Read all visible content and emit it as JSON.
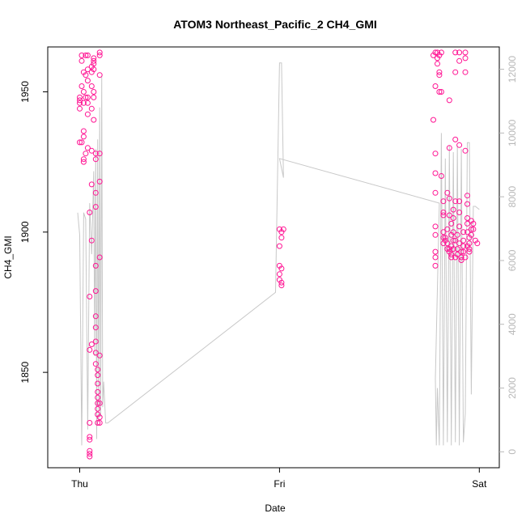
{
  "chart_data": {
    "type": "scatter",
    "title": "ATOM3 Northeast_Pacific_2 CH4_GMI",
    "xlabel": "Date",
    "ylabel": "CH4_GMI",
    "x_ticks": [
      "Thu",
      "Fri",
      "Sat"
    ],
    "y_ticks_left": [
      "1850",
      "1900",
      "1950"
    ],
    "y_ticks_right": [
      "0",
      "2000",
      "4000",
      "6000",
      "8000",
      "10000",
      "12000"
    ],
    "ylim_left": [
      1816,
      1966
    ],
    "ylim_right": [
      -500,
      12700
    ],
    "xlim_days": [
      -0.16,
      2.1
    ],
    "marker_color": "#ff1493",
    "line_color": "#c8c8c8",
    "series": [
      {
        "kind": "points",
        "axis": "left",
        "points": [
          [
            0.0,
            1932
          ],
          [
            0.0,
            1946
          ],
          [
            0.0,
            1948
          ],
          [
            0.0,
            1947
          ],
          [
            0.0,
            1944
          ],
          [
            0.01,
            1932
          ],
          [
            0.01,
            1952
          ],
          [
            0.01,
            1963
          ],
          [
            0.01,
            1961
          ],
          [
            0.02,
            1957
          ],
          [
            0.02,
            1950
          ],
          [
            0.02,
            1946
          ],
          [
            0.02,
            1936
          ],
          [
            0.02,
            1934
          ],
          [
            0.02,
            1926
          ],
          [
            0.02,
            1925
          ],
          [
            0.03,
            1928
          ],
          [
            0.03,
            1963
          ],
          [
            0.03,
            1956
          ],
          [
            0.03,
            1948
          ],
          [
            0.04,
            1963
          ],
          [
            0.04,
            1958
          ],
          [
            0.04,
            1954
          ],
          [
            0.04,
            1948
          ],
          [
            0.04,
            1946
          ],
          [
            0.04,
            1942
          ],
          [
            0.04,
            1930
          ],
          [
            0.05,
            1907
          ],
          [
            0.05,
            1877
          ],
          [
            0.05,
            1858
          ],
          [
            0.05,
            1832
          ],
          [
            0.05,
            1827
          ],
          [
            0.05,
            1822
          ],
          [
            0.05,
            1820
          ],
          [
            0.05,
            1821
          ],
          [
            0.05,
            1826
          ],
          [
            0.06,
            1860
          ],
          [
            0.06,
            1897
          ],
          [
            0.06,
            1917
          ],
          [
            0.06,
            1929
          ],
          [
            0.06,
            1944
          ],
          [
            0.06,
            1952
          ],
          [
            0.06,
            1957
          ],
          [
            0.06,
            1959
          ],
          [
            0.07,
            1961
          ],
          [
            0.07,
            1962
          ],
          [
            0.07,
            1960
          ],
          [
            0.07,
            1958
          ],
          [
            0.07,
            1950
          ],
          [
            0.07,
            1948
          ],
          [
            0.07,
            1940
          ],
          [
            0.08,
            1928
          ],
          [
            0.08,
            1926
          ],
          [
            0.08,
            1914
          ],
          [
            0.08,
            1909
          ],
          [
            0.08,
            1888
          ],
          [
            0.08,
            1879
          ],
          [
            0.08,
            1870
          ],
          [
            0.08,
            1866
          ],
          [
            0.08,
            1861
          ],
          [
            0.08,
            1857
          ],
          [
            0.08,
            1853
          ],
          [
            0.09,
            1851
          ],
          [
            0.09,
            1849
          ],
          [
            0.09,
            1846
          ],
          [
            0.09,
            1843
          ],
          [
            0.09,
            1841
          ],
          [
            0.09,
            1839
          ],
          [
            0.09,
            1837
          ],
          [
            0.09,
            1835
          ],
          [
            0.09,
            1832
          ],
          [
            0.1,
            1839
          ],
          [
            0.1,
            1834
          ],
          [
            0.1,
            1832
          ],
          [
            0.1,
            1856
          ],
          [
            0.1,
            1891
          ],
          [
            0.1,
            1918
          ],
          [
            0.1,
            1928
          ],
          [
            0.1,
            1956
          ],
          [
            0.1,
            1963
          ],
          [
            0.1,
            1964
          ],
          [
            1.0,
            1901
          ],
          [
            1.0,
            1895
          ],
          [
            1.0,
            1888
          ],
          [
            1.0,
            1885
          ],
          [
            1.0,
            1883
          ],
          [
            1.01,
            1882
          ],
          [
            1.01,
            1881
          ],
          [
            1.01,
            1887
          ],
          [
            1.01,
            1898
          ],
          [
            1.01,
            1900
          ],
          [
            1.02,
            1901
          ],
          [
            1.77,
            1963
          ],
          [
            1.78,
            1964
          ],
          [
            1.78,
            1952
          ],
          [
            1.77,
            1940
          ],
          [
            1.78,
            1928
          ],
          [
            1.78,
            1921
          ],
          [
            1.78,
            1914
          ],
          [
            1.78,
            1902
          ],
          [
            1.78,
            1899
          ],
          [
            1.78,
            1893
          ],
          [
            1.78,
            1891
          ],
          [
            1.78,
            1888
          ],
          [
            1.79,
            1964
          ],
          [
            1.79,
            1962
          ],
          [
            1.79,
            1960
          ],
          [
            1.8,
            1957
          ],
          [
            1.8,
            1956
          ],
          [
            1.8,
            1963
          ],
          [
            1.8,
            1950
          ],
          [
            1.81,
            1964
          ],
          [
            1.81,
            1950
          ],
          [
            1.81,
            1920
          ],
          [
            1.82,
            1911
          ],
          [
            1.82,
            1906
          ],
          [
            1.82,
            1907
          ],
          [
            1.82,
            1900
          ],
          [
            1.82,
            1898
          ],
          [
            1.82,
            1896
          ],
          [
            1.83,
            1898
          ],
          [
            1.83,
            1897
          ],
          [
            1.84,
            1901
          ],
          [
            1.84,
            1914
          ],
          [
            1.84,
            1894
          ],
          [
            1.84,
            1896
          ],
          [
            1.85,
            1947
          ],
          [
            1.85,
            1930
          ],
          [
            1.85,
            1912
          ],
          [
            1.85,
            1906
          ],
          [
            1.85,
            1894
          ],
          [
            1.85,
            1893
          ],
          [
            1.86,
            1903
          ],
          [
            1.86,
            1899
          ],
          [
            1.86,
            1895
          ],
          [
            1.86,
            1892
          ],
          [
            1.86,
            1891
          ],
          [
            1.87,
            1908
          ],
          [
            1.87,
            1905
          ],
          [
            1.87,
            1900
          ],
          [
            1.87,
            1897
          ],
          [
            1.87,
            1894
          ],
          [
            1.88,
            1964
          ],
          [
            1.88,
            1957
          ],
          [
            1.88,
            1933
          ],
          [
            1.88,
            1911
          ],
          [
            1.88,
            1897
          ],
          [
            1.88,
            1891
          ],
          [
            1.89,
            1899
          ],
          [
            1.89,
            1894
          ],
          [
            1.89,
            1892
          ],
          [
            1.9,
            1964
          ],
          [
            1.9,
            1961
          ],
          [
            1.9,
            1931
          ],
          [
            1.9,
            1911
          ],
          [
            1.9,
            1907
          ],
          [
            1.9,
            1902
          ],
          [
            1.9,
            1896
          ],
          [
            1.91,
            1893
          ],
          [
            1.91,
            1891
          ],
          [
            1.91,
            1890
          ],
          [
            1.92,
            1900
          ],
          [
            1.92,
            1897
          ],
          [
            1.92,
            1895
          ],
          [
            1.92,
            1893
          ],
          [
            1.93,
            1891
          ],
          [
            1.93,
            1964
          ],
          [
            1.93,
            1962
          ],
          [
            1.93,
            1957
          ],
          [
            1.93,
            1929
          ],
          [
            1.94,
            1913
          ],
          [
            1.94,
            1910
          ],
          [
            1.94,
            1905
          ],
          [
            1.94,
            1903
          ],
          [
            1.94,
            1900
          ],
          [
            1.94,
            1895
          ],
          [
            1.95,
            1898
          ],
          [
            1.95,
            1896
          ],
          [
            1.95,
            1894
          ],
          [
            1.95,
            1893
          ],
          [
            1.96,
            1904
          ],
          [
            1.96,
            1901
          ],
          [
            1.96,
            1899
          ],
          [
            1.97,
            1903
          ],
          [
            1.97,
            1901
          ],
          [
            1.98,
            1897
          ],
          [
            1.99,
            1896
          ]
        ]
      },
      {
        "kind": "line",
        "axis": "right",
        "points": [
          [
            -0.01,
            7500
          ],
          [
            0.0,
            6800
          ],
          [
            0.01,
            200
          ],
          [
            0.02,
            7500
          ],
          [
            0.03,
            7300
          ],
          [
            0.04,
            700
          ],
          [
            0.05,
            7800
          ],
          [
            0.06,
            6200
          ],
          [
            0.07,
            8800
          ],
          [
            0.075,
            3000
          ],
          [
            0.08,
            9500
          ],
          [
            0.085,
            400
          ],
          [
            0.09,
            9800
          ],
          [
            0.095,
            1000
          ],
          [
            0.1,
            10800
          ],
          [
            0.105,
            1100
          ],
          [
            0.11,
            11800
          ],
          [
            0.115,
            1400
          ],
          [
            0.12,
            2200
          ],
          [
            0.13,
            900
          ],
          [
            0.14,
            900
          ],
          [
            0.98,
            5000
          ],
          [
            1.0,
            12200
          ],
          [
            1.01,
            12200
          ],
          [
            1.02,
            8600
          ],
          [
            1.0,
            9200
          ],
          [
            1.8,
            7800
          ],
          [
            1.78,
            2300
          ],
          [
            1.785,
            200
          ],
          [
            1.79,
            2000
          ],
          [
            1.8,
            200
          ],
          [
            1.81,
            10000
          ],
          [
            1.82,
            200
          ],
          [
            1.83,
            9200
          ],
          [
            1.84,
            300
          ],
          [
            1.85,
            9600
          ],
          [
            1.86,
            200
          ],
          [
            1.87,
            9400
          ],
          [
            1.88,
            300
          ],
          [
            1.89,
            9600
          ],
          [
            1.9,
            200
          ],
          [
            1.91,
            9500
          ],
          [
            1.92,
            300
          ],
          [
            1.93,
            1200
          ],
          [
            1.94,
            9700
          ],
          [
            1.95,
            9700
          ],
          [
            1.96,
            1800
          ],
          [
            1.97,
            7700
          ],
          [
            1.98,
            7700
          ],
          [
            2.0,
            7600
          ]
        ]
      }
    ]
  }
}
